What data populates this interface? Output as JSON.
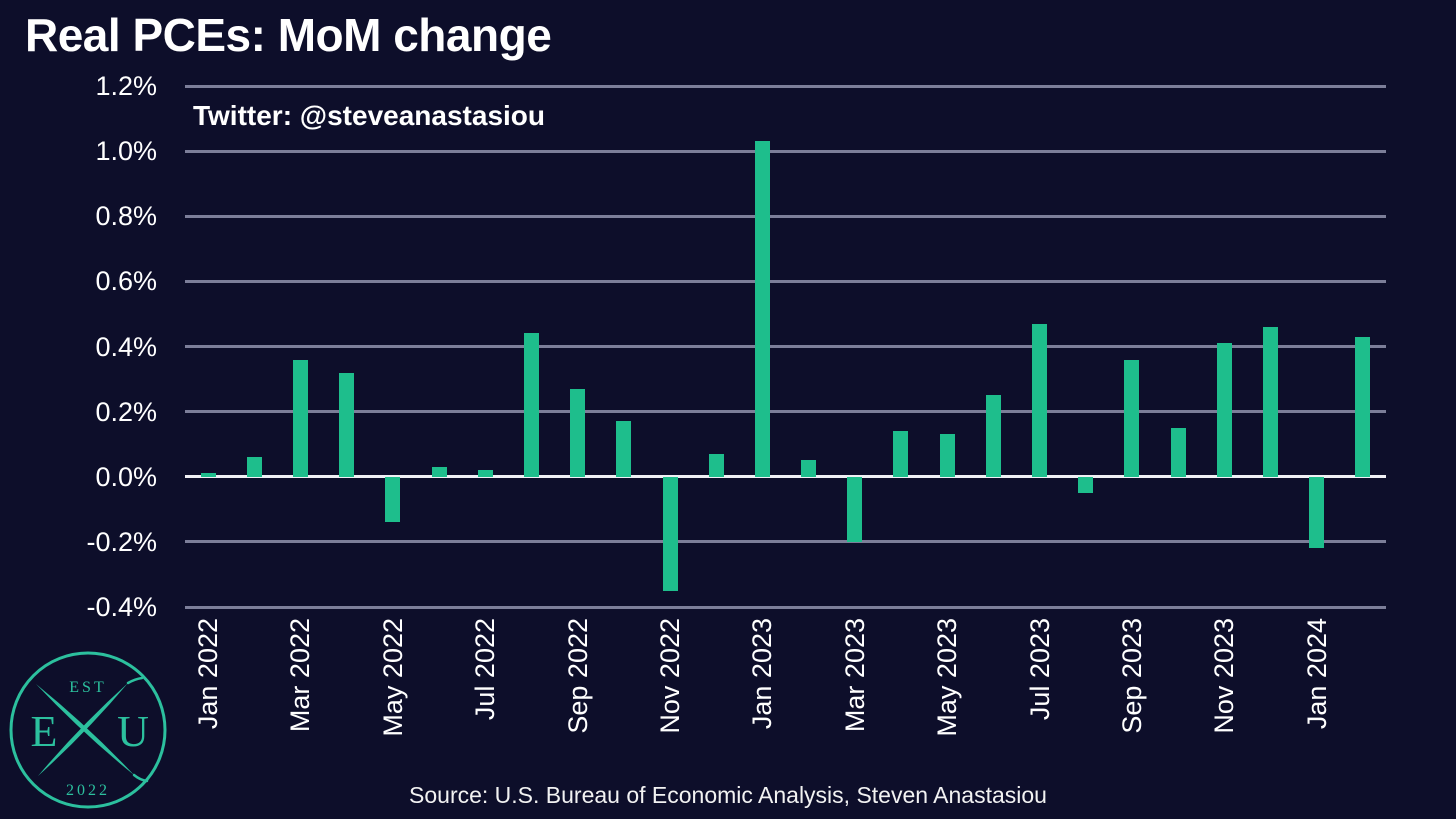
{
  "title": "Real PCEs: MoM change",
  "annotation": "Twitter: @steveanastasiou",
  "source": "Source: U.S. Bureau of Economic Analysis, Steven Anastasiou",
  "logo": {
    "est": "EST",
    "left_letter": "E",
    "right_letter": "U",
    "year": "2022"
  },
  "colors": {
    "background": "#0D0E2A",
    "bar": "#1EBE8C",
    "grid": "#7C7E99",
    "zero_line": "#F0F0F5",
    "text": "#FFFFFF",
    "logo": "#2CC09E"
  },
  "chart_data": {
    "type": "bar",
    "title": "Real PCEs: MoM change",
    "xlabel": "",
    "ylabel": "",
    "unit": "%",
    "ylim": [
      -0.4,
      1.2
    ],
    "grid": "horizontal",
    "legend": false,
    "x": [
      "Jan 2022",
      "Feb 2022",
      "Mar 2022",
      "Apr 2022",
      "May 2022",
      "Jun 2022",
      "Jul 2022",
      "Aug 2022",
      "Sep 2022",
      "Oct 2022",
      "Nov 2022",
      "Dec 2022",
      "Jan 2023",
      "Feb 2023",
      "Mar 2023",
      "Apr 2023",
      "May 2023",
      "Jun 2023",
      "Jul 2023",
      "Aug 2023",
      "Sep 2023",
      "Oct 2023",
      "Nov 2023",
      "Dec 2023",
      "Jan 2024",
      "Feb 2024"
    ],
    "values": [
      0.01,
      0.06,
      0.36,
      0.32,
      -0.14,
      0.03,
      0.02,
      0.44,
      0.27,
      0.17,
      -0.35,
      0.07,
      1.03,
      0.05,
      -0.2,
      0.14,
      0.13,
      0.25,
      0.47,
      -0.05,
      0.36,
      0.15,
      0.41,
      0.46,
      -0.22,
      0.43
    ],
    "x_tick_labels": [
      "Jan 2022",
      "Mar 2022",
      "May 2022",
      "Jul 2022",
      "Sep 2022",
      "Nov 2022",
      "Jan 2023",
      "Mar 2023",
      "May 2023",
      "Jul 2023",
      "Sep 2023",
      "Nov 2023",
      "Jan 2024"
    ],
    "x_tick_every": 2,
    "y_tick_values": [
      1.2,
      1.0,
      0.8,
      0.6,
      0.4,
      0.2,
      0.0,
      -0.2,
      -0.4
    ],
    "y_tick_labels": [
      "1.2%",
      "1.0%",
      "0.8%",
      "0.6%",
      "0.4%",
      "0.2%",
      "0.0%",
      "-0.2%",
      "-0.4%"
    ]
  }
}
